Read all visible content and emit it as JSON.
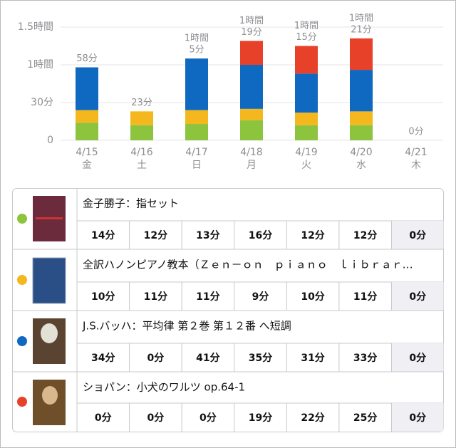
{
  "chart_data": {
    "type": "stacked_bar",
    "categories": [
      "4/15",
      "4/16",
      "4/17",
      "4/18",
      "4/19",
      "4/20",
      "4/21"
    ],
    "weekdays": [
      "金",
      "土",
      "日",
      "月",
      "火",
      "水",
      "木"
    ],
    "ylim": [
      0,
      90
    ],
    "yticks": [
      0,
      {
        "value": 30,
        "label": "30分"
      },
      {
        "value": 60,
        "label": "1時間"
      },
      {
        "value": 90,
        "label": "1.5時間"
      }
    ],
    "grid": true,
    "total_labels": [
      [
        "58分"
      ],
      [
        "23分"
      ],
      [
        "1時間",
        "5分"
      ],
      [
        "1時間",
        "19分"
      ],
      [
        "1時間",
        "15分"
      ],
      [
        "1時間",
        "21分"
      ],
      [
        "0分"
      ]
    ],
    "series": [
      {
        "name": "金子勝子：指セット",
        "color": "#8cc43e",
        "values": [
          14,
          12,
          13,
          16,
          12,
          12,
          0
        ],
        "value_labels": [
          "14分",
          "12分",
          "13分",
          "16分",
          "12分",
          "12分",
          "0分"
        ]
      },
      {
        "name": "全訳ハノンピアノ教本（Ｚｅｎ－ｏｎ　ｐｉａｎｏ　ｌｉｂｒａｒ…",
        "color": "#f4b71d",
        "values": [
          10,
          11,
          11,
          9,
          10,
          11,
          0
        ],
        "value_labels": [
          "10分",
          "11分",
          "11分",
          "9分",
          "10分",
          "11分",
          "0分"
        ]
      },
      {
        "name": "J.S.バッハ：平均律 第２巻 第１２番 へ短調",
        "color": "#0f69c0",
        "values": [
          34,
          0,
          41,
          35,
          31,
          33,
          0
        ],
        "value_labels": [
          "34分",
          "0分",
          "41分",
          "35分",
          "31分",
          "33分",
          "0分"
        ]
      },
      {
        "name": "ショパン：小犬のワルツ op.64-1",
        "color": "#e8412a",
        "values": [
          0,
          0,
          0,
          19,
          22,
          25,
          0
        ],
        "value_labels": [
          "0分",
          "0分",
          "0分",
          "19分",
          "22分",
          "25分",
          "0分"
        ]
      }
    ]
  }
}
